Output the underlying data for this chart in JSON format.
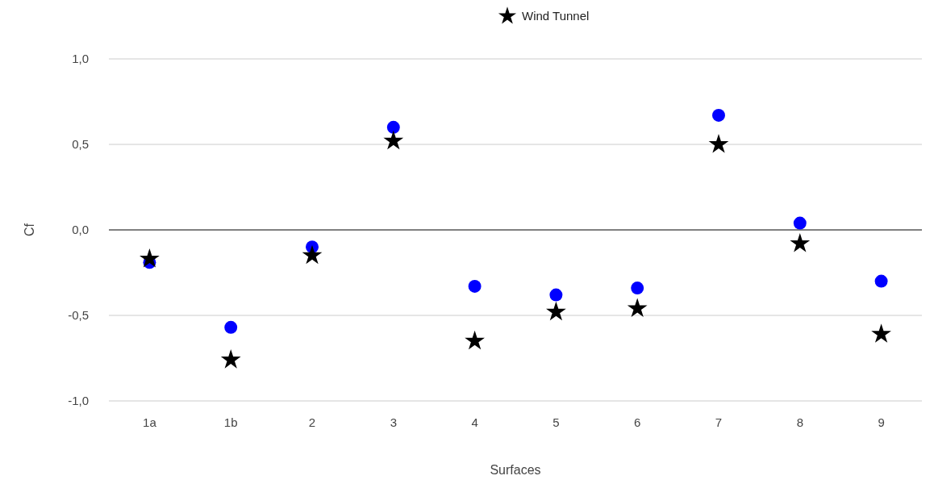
{
  "chart_data": {
    "type": "scatter",
    "xlabel": "Surfaces",
    "ylabel": "Cf",
    "categories": [
      "1a",
      "1b",
      "2",
      "3",
      "4",
      "5",
      "6",
      "7",
      "8",
      "9"
    ],
    "series": [
      {
        "name": "Wind Tunnel",
        "color": "#000000",
        "marker": "star",
        "values": [
          -0.17,
          -0.76,
          -0.15,
          0.52,
          -0.65,
          -0.48,
          -0.46,
          0.5,
          -0.08,
          -0.61
        ]
      },
      {
        "color": "#0000ff",
        "marker": "circle",
        "values": [
          -0.19,
          -0.57,
          -0.1,
          0.6,
          -0.33,
          -0.38,
          -0.34,
          0.67,
          0.04,
          -0.3
        ]
      }
    ],
    "ylim": [
      -1,
      1
    ],
    "yticks": [
      {
        "value": -1,
        "label": "-1,0"
      },
      {
        "value": -0.5,
        "label": "-0,5"
      },
      {
        "value": 0,
        "label": "0,0"
      },
      {
        "value": 0.5,
        "label": "0,5"
      },
      {
        "value": 1,
        "label": "1,0"
      }
    ],
    "grid": "y",
    "legend": "top"
  }
}
